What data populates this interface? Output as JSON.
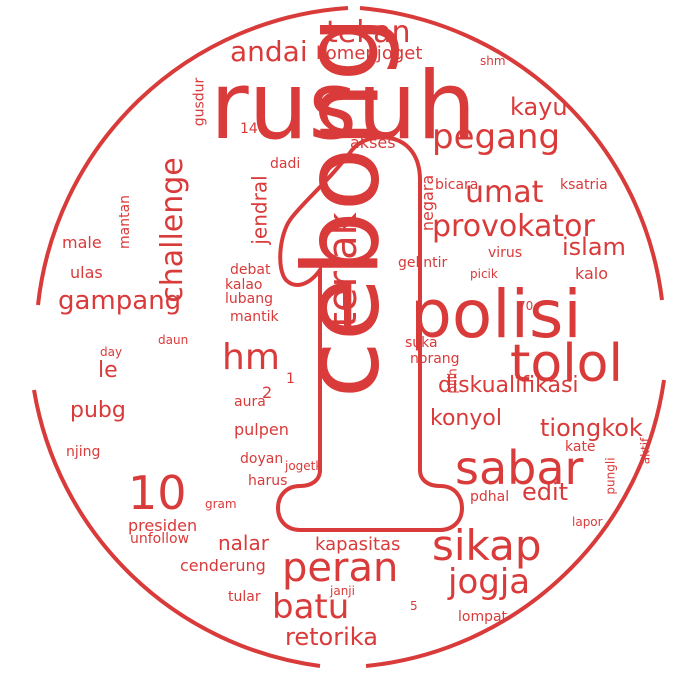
{
  "colors": {
    "word": "#d93a3a",
    "outline": "#d93a3a",
    "background": "#ffffff"
  },
  "words": [
    "rusuh",
    "cebong",
    "polisi",
    "tolol",
    "sabar",
    "sikap",
    "teriak",
    "peran",
    "jogja",
    "batu",
    "pegang",
    "provokator",
    "tekan",
    "andai",
    "komenjoget",
    "umat",
    "hm",
    "challenge",
    "jendral",
    "islam",
    "kayu",
    "gampang",
    "diskualifikasi",
    "konyol",
    "tiongkok",
    "edit",
    "retorika",
    "nalar",
    "kapasitas",
    "cenderung",
    "presiden",
    "pubg",
    "le",
    "10",
    "akses",
    "negara",
    "ksatria",
    "bicara",
    "male",
    "ulas",
    "debat",
    "kalao",
    "lubang",
    "mantik",
    "gelintir",
    "virus",
    "kalo",
    "suka",
    "norang",
    "pilih",
    "gusdur",
    "mantan",
    "dadi",
    "14",
    "daun",
    "day",
    "aura",
    "2",
    "1",
    "pulpen",
    "doyan",
    "harus",
    "gram",
    "unfollow",
    "tular",
    "janji",
    "lompat",
    "5",
    "lapor",
    "pungli",
    "aktif",
    "kate",
    "pdhal",
    "jogetk",
    "shm",
    "70",
    "njing",
    "picik"
  ]
}
